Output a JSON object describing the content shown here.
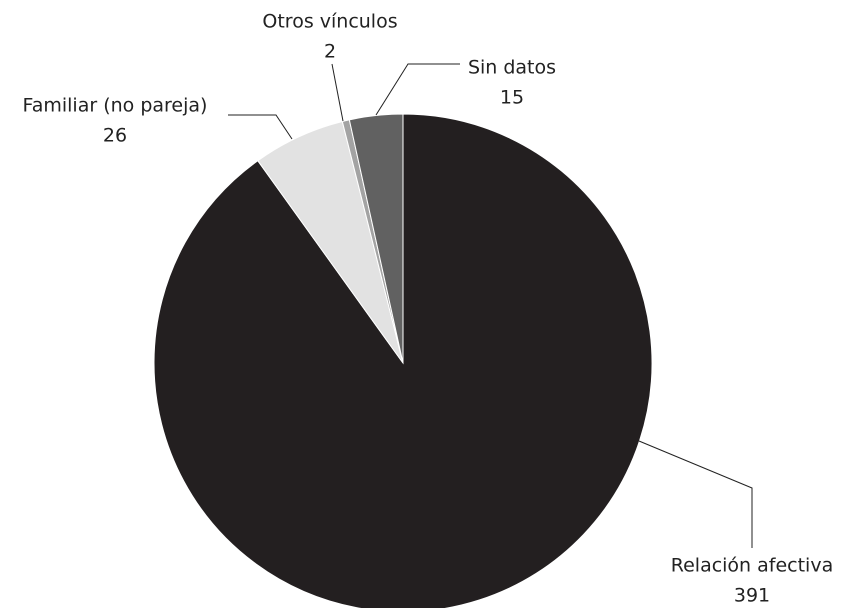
{
  "chart_data": {
    "type": "pie",
    "categories": [
      "Relación afectiva",
      "Familiar (no pareja)",
      "Otros vínculos",
      "Sin datos"
    ],
    "values": [
      391,
      26,
      2,
      15
    ],
    "colors": [
      "#231f20",
      "#e2e2e2",
      "#a3a3a3",
      "#616161"
    ]
  }
}
